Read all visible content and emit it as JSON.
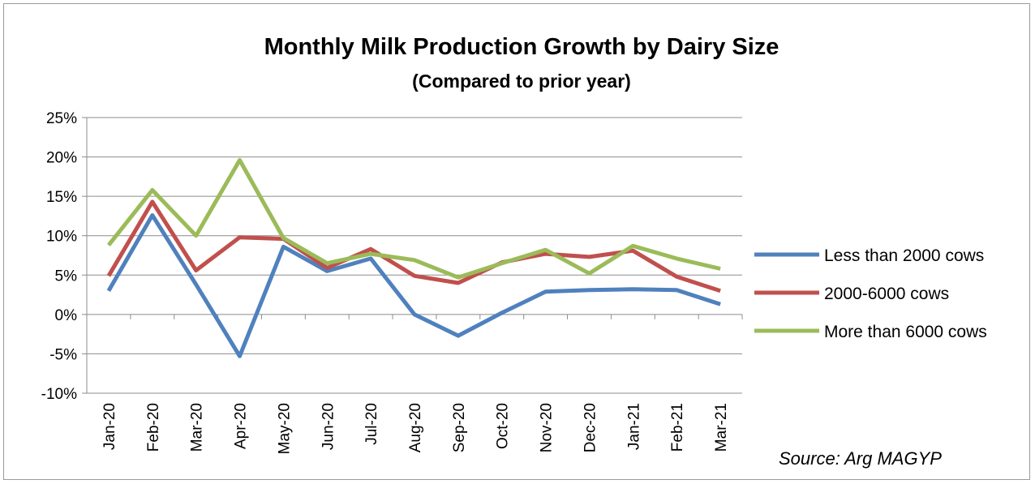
{
  "chart_data": {
    "type": "line",
    "title": "Monthly Milk Production Growth by Dairy Size",
    "subtitle": "(Compared to prior year)",
    "source": "Source: Arg MAGYP",
    "categories": [
      "Jan-20",
      "Feb-20",
      "Mar-20",
      "Apr-20",
      "May-20",
      "Jun-20",
      "Jul-20",
      "Aug-20",
      "Sep-20",
      "Oct-20",
      "Nov-20",
      "Dec-20",
      "Jan-21",
      "Feb-21",
      "Mar-21"
    ],
    "y_ticks": [
      "25%",
      "20%",
      "15%",
      "10%",
      "5%",
      "0%",
      "-5%",
      "-10%"
    ],
    "ylim": [
      -10,
      25
    ],
    "y_step": 5,
    "grid": true,
    "legend_position": "right",
    "series": [
      {
        "name": "Less than 2000 cows",
        "color": "#4f81bd",
        "values": [
          3.0,
          12.6,
          3.8,
          -5.3,
          8.6,
          5.5,
          7.1,
          0.0,
          -2.7,
          0.2,
          2.9,
          3.1,
          3.2,
          3.1,
          1.3
        ]
      },
      {
        "name": "2000-6000 cows",
        "color": "#c0504d",
        "values": [
          4.9,
          14.3,
          5.6,
          9.8,
          9.6,
          5.9,
          8.3,
          4.9,
          4.0,
          6.6,
          7.7,
          7.3,
          8.1,
          4.8,
          3.0
        ]
      },
      {
        "name": "More than 6000 cows",
        "color": "#9bbb59",
        "values": [
          8.8,
          15.8,
          10.0,
          19.6,
          9.7,
          6.5,
          7.7,
          6.9,
          4.7,
          6.5,
          8.2,
          5.2,
          8.7,
          7.1,
          5.8
        ]
      }
    ]
  }
}
